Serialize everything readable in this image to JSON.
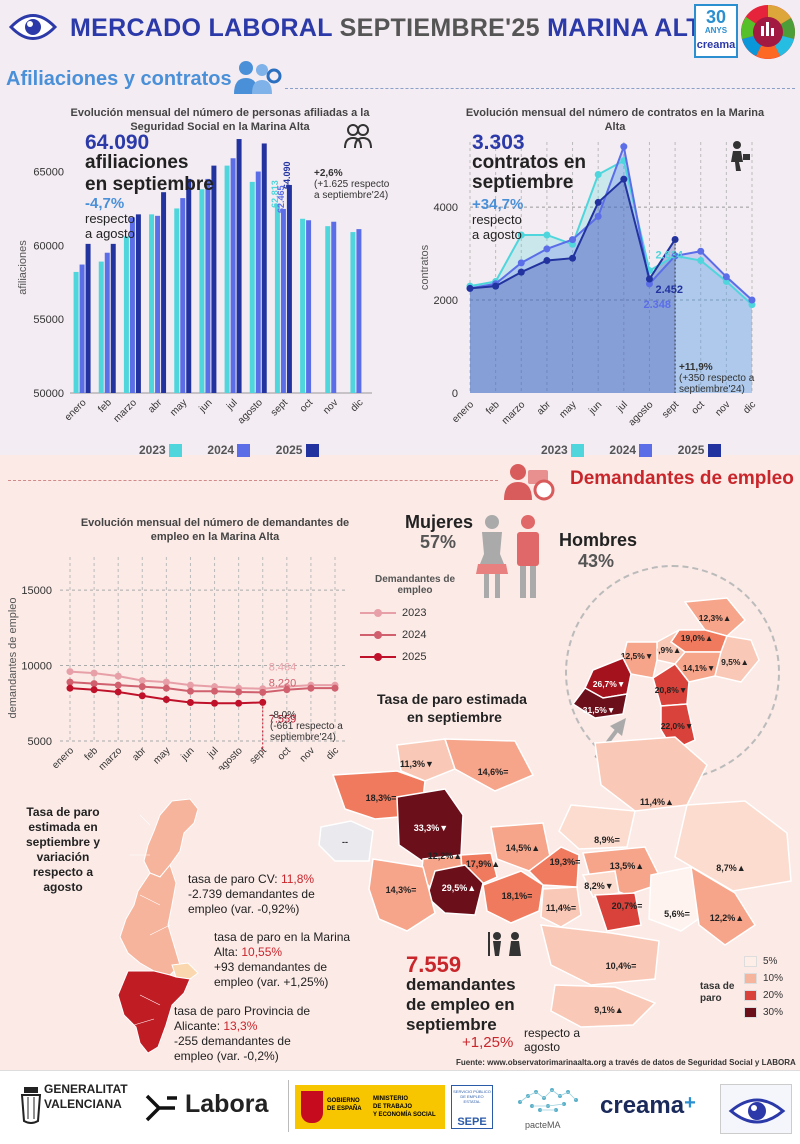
{
  "header": {
    "title_part1": "MERCADO LABORAL",
    "title_part2": "SEPTIEMBRE'25",
    "title_part3": "MARINA ALTA",
    "badge_number": "30",
    "badge_sub": "ANYS",
    "badge_brand": "creama"
  },
  "sections": {
    "affiliations": "Afiliaciones y contratos",
    "jobseekers": "Demandantes de empleo"
  },
  "affil_chart": {
    "title": "Evolución mensual del número de personas afiliadas a la Seguridad Social en la Marina Alta",
    "big_value": "64.090",
    "big_label1": "afiliaciones",
    "big_label2": "en septiembre",
    "change_value": "-4,7%",
    "change_label1": "respecto",
    "change_label2": "a agosto",
    "yoy_value": "+2,6%",
    "yoy_note1": "(+1.625 respecto",
    "yoy_note2": "a septiembre'24)"
  },
  "contracts_chart": {
    "title": "Evolución mensual del número de contratos en la Marina Alta",
    "big_value": "3.303",
    "big_label1": "contratos en",
    "big_label2": "septiembre",
    "change_value": "+34,7%",
    "change_label1": "respecto",
    "change_label2": "a agosto",
    "yoy_value": "+11,9%",
    "yoy_note1": "(+350 respecto a",
    "yoy_note2": "septiembre'24)"
  },
  "jobseekers_chart": {
    "title": "Evolución mensual del número de demandantes de empleo en la Marina Alta",
    "legend_title1": "Demandantes de",
    "legend_title2": "empleo",
    "yoy_value": "-8,0%",
    "yoy_note1": "(-661 respecto a",
    "yoy_note2": "septiembre'24)"
  },
  "gender": {
    "women_label": "Mujeres",
    "women_pct": "57%",
    "men_label": "Hombres",
    "men_pct": "43%"
  },
  "map": {
    "title1": "Tasa de paro estimada",
    "title2": "en septiembre",
    "legend_title1": "tasa de",
    "legend_title2": "paro",
    "legend_items": [
      {
        "label": "5%",
        "color": "#fdeee8"
      },
      {
        "label": "10%",
        "color": "#f6b49c"
      },
      {
        "label": "20%",
        "color": "#d9423a"
      },
      {
        "label": "30%",
        "color": "#6b0f1a"
      }
    ],
    "zoom_labels": [
      "12,3%▲",
      "19,0%▲",
      "10,9%▲",
      "12,5%▼",
      "14,1%▼",
      "9,5%▲",
      "26,7%▼",
      "20,8%▼",
      "31,5%▼",
      "22,0%▼"
    ],
    "main_labels": [
      "11,3%▼",
      "14,6%=",
      "18,3%=",
      "33,3%▼",
      "11,4%▲",
      "8,9%=",
      "12,2%▲",
      "17,9%▲",
      "14,5%▲",
      "19,3%=",
      "13,5%▲",
      "8,7%▲",
      "29,5%▲",
      "18,1%=",
      "11,4%=",
      "8,2%▼",
      "20,7%=",
      "14,3%=",
      "5,6%=",
      "12,2%▲",
      "10,4%=",
      "9,1%▲",
      "--"
    ]
  },
  "region": {
    "title1": "Tasa de paro",
    "title2": "estimada en",
    "title3": "septiembre y",
    "title4": "variación",
    "title5": "respecto a",
    "title6": "agosto",
    "cv_prefix": "tasa de paro CV: ",
    "cv_rate": "11,8%",
    "cv_line2": "-2.739 demandantes de",
    "cv_line3": "empleo (var. -0,92%)",
    "ma_prefix": "tasa de paro en la Marina",
    "ma_prefix2": "Alta: ",
    "ma_rate": "10,55%",
    "ma_line2": "+93 demandantes de",
    "ma_line3": "empleo (var. +1,25%)",
    "al_prefix": "tasa de paro Provincia de",
    "al_prefix2": "Alicante: ",
    "al_rate": "13,3%",
    "al_line2": "-255 demandantes de",
    "al_line3": "empleo (var. -0,2%)"
  },
  "summary": {
    "big_value": "7.559",
    "label1": "demandantes",
    "label2": "de empleo en",
    "label3": "septiembre",
    "change_value": "+1,25%",
    "change_label1": "respecto a",
    "change_label2": "agosto"
  },
  "source": "Fuente: www.observatorimarinaalta.org a través de datos de Seguridad Social y LABORA",
  "footer": {
    "gv1": "GENERALITAT",
    "gv2": "VALENCIANA",
    "labora": "Labora",
    "gob1": "GOBIERNO",
    "gob2": "DE ESPAÑA",
    "min1": "MINISTERIO",
    "min2": "DE TRABAJO",
    "min3": "Y ECONOMÍA SOCIAL",
    "sepe_small": "SERVICIO PÚBLICO DE EMPLEO ESTATAL",
    "sepe": "SEPE",
    "pacte": "pacteMA",
    "creama": "creama",
    "plus": "+"
  },
  "colors": {
    "y2023": "#4fd6dc",
    "y2024": "#5b6ee8",
    "y2025": "#2233a0",
    "title_blue": "#2b3aa8",
    "accent_red": "#c9262c",
    "d2023": "#e8a0a8",
    "d2024": "#d0606e",
    "d2025": "#c0112a"
  },
  "chart_data": [
    {
      "type": "bar",
      "title": "Evolución mensual del número de personas afiliadas a la Seguridad Social en la Marina Alta",
      "ylabel": "afiliaciones",
      "ylim": [
        50000,
        67000
      ],
      "yticks": [
        "50000",
        "55000",
        "60000",
        "65000"
      ],
      "categories": [
        "enero",
        "feb",
        "marzo",
        "abr",
        "may",
        "jun",
        "jul",
        "agosto",
        "sept",
        "oct",
        "nov",
        "dic"
      ],
      "series": [
        {
          "name": "2023",
          "values": [
            58200,
            58900,
            60600,
            62100,
            62500,
            63800,
            65400,
            64300,
            62813,
            61800,
            61300,
            60900
          ]
        },
        {
          "name": "2024",
          "values": [
            58700,
            59500,
            61900,
            62000,
            63200,
            64500,
            65900,
            65000,
            62465,
            61700,
            61600,
            61100
          ]
        },
        {
          "name": "2025",
          "values": [
            60100,
            60100,
            62100,
            63600,
            64500,
            65400,
            67200,
            66900,
            64090,
            null,
            null,
            null
          ]
        }
      ],
      "data_labels": [
        "62.813",
        "62.465",
        "64.090"
      ],
      "legend": [
        "2023",
        "2024",
        "2025"
      ]
    },
    {
      "type": "line",
      "title": "Evolución mensual del número de contratos en la Marina Alta",
      "ylabel": "contratos",
      "ylim": [
        0,
        5400
      ],
      "yticks": [
        "0",
        "2000",
        "4000"
      ],
      "categories": [
        "enero",
        "feb",
        "marzo",
        "abr",
        "may",
        "jun",
        "jul",
        "agosto",
        "sept",
        "oct",
        "nov",
        "dic"
      ],
      "series": [
        {
          "name": "2023",
          "values": [
            2300,
            2400,
            3400,
            3400,
            3200,
            4700,
            5000,
            2634,
            2950,
            2850,
            2400,
            1900
          ]
        },
        {
          "name": "2024",
          "values": [
            2250,
            2350,
            2800,
            3100,
            3300,
            3800,
            5300,
            2348,
            2950,
            3050,
            2500,
            2000
          ]
        },
        {
          "name": "2025",
          "values": [
            2250,
            2300,
            2600,
            2850,
            2900,
            4100,
            4600,
            2452,
            3303,
            null,
            null,
            null
          ]
        }
      ],
      "data_labels": [
        "2.634",
        "2.452",
        "2.348"
      ],
      "legend": [
        "2023",
        "2024",
        "2025"
      ]
    },
    {
      "type": "line",
      "title": "Evolución mensual del número de demandantes de empleo en la Marina Alta",
      "ylabel": "demandantes de empleo",
      "ylim": [
        5000,
        16000
      ],
      "yticks": [
        "5000",
        "10000",
        "15000"
      ],
      "categories": [
        "enero",
        "feb",
        "marzo",
        "abr",
        "may",
        "jun",
        "jul",
        "agosto",
        "sept",
        "oct",
        "nov",
        "dic"
      ],
      "series": [
        {
          "name": "2023",
          "values": [
            9600,
            9500,
            9300,
            9000,
            8900,
            8700,
            8600,
            8500,
            8464,
            8600,
            8700,
            8700
          ]
        },
        {
          "name": "2024",
          "values": [
            8900,
            8800,
            8700,
            8600,
            8500,
            8300,
            8300,
            8250,
            8220,
            8400,
            8500,
            8500
          ]
        },
        {
          "name": "2025",
          "values": [
            8500,
            8400,
            8250,
            8000,
            7750,
            7550,
            7500,
            7500,
            7559,
            null,
            null,
            null
          ]
        }
      ],
      "data_labels": [
        "8.464",
        "8.220",
        "7.559"
      ],
      "legend": [
        "2023",
        "2024",
        "2025"
      ]
    }
  ]
}
